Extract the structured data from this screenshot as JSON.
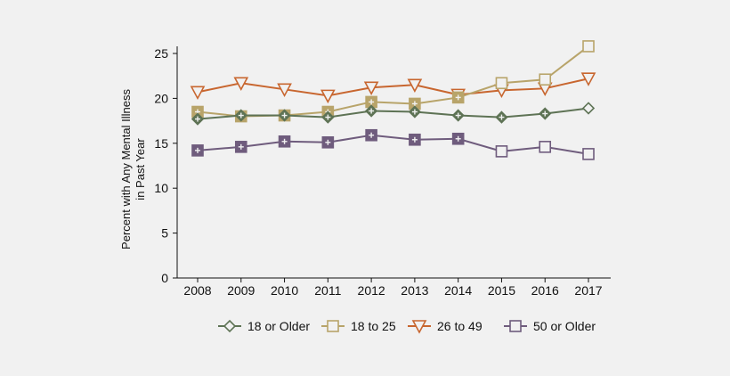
{
  "chart_data": {
    "type": "line",
    "title": "",
    "xlabel": "",
    "ylabel_lines": [
      "Percent with Any Mental Illness",
      "in Past Year"
    ],
    "x": [
      "2008",
      "2009",
      "2010",
      "2011",
      "2012",
      "2013",
      "2014",
      "2015",
      "2016",
      "2017"
    ],
    "ylim": [
      0,
      25
    ],
    "yticks": [
      0,
      5,
      10,
      15,
      20,
      25
    ],
    "series": [
      {
        "name": "18 or Older",
        "marker": "diamond",
        "color": "#5e7355",
        "values": [
          17.7,
          18.1,
          18.1,
          17.9,
          18.6,
          18.5,
          18.1,
          17.9,
          18.3,
          18.9
        ]
      },
      {
        "name": "18 to 25",
        "marker": "square",
        "color": "#b8a46a",
        "values": [
          18.5,
          18.0,
          18.1,
          18.5,
          19.6,
          19.4,
          20.1,
          21.7,
          22.1,
          25.8
        ]
      },
      {
        "name": "26 to 49",
        "marker": "triangle-down",
        "color": "#c8662f",
        "values": [
          20.7,
          21.7,
          21.0,
          20.3,
          21.2,
          21.5,
          20.4,
          20.9,
          21.1,
          22.2
        ]
      },
      {
        "name": "50 or Older",
        "marker": "square",
        "color": "#6f5c7d",
        "values": [
          14.2,
          14.6,
          15.2,
          15.1,
          15.9,
          15.4,
          15.5,
          14.1,
          14.6,
          13.8
        ]
      }
    ],
    "legend_position": "bottom"
  }
}
